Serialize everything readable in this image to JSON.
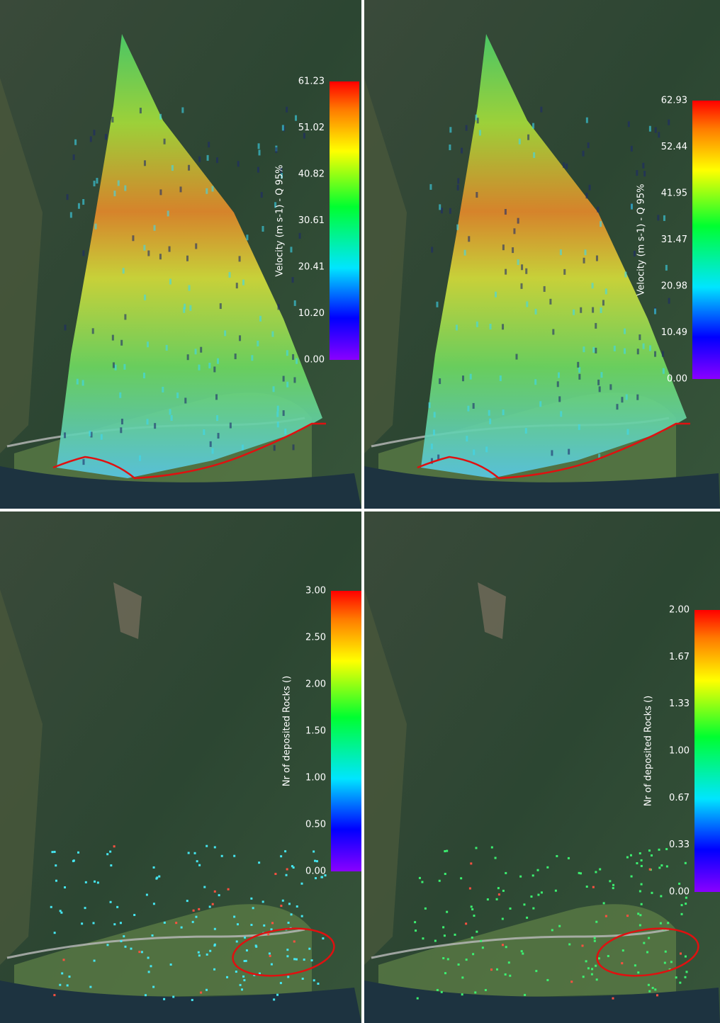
{
  "panels": [
    {
      "colorbar": {
        "title": "Velocity (m s-1) - Q 95%",
        "ticks": [
          "0.00",
          "10.20",
          "20.41",
          "30.61",
          "40.82",
          "51.02",
          "61.23"
        ]
      }
    },
    {
      "colorbar": {
        "title": "Velocity (m s-1) - Q 95%",
        "ticks": [
          "0.00",
          "10.49",
          "20.98",
          "31.47",
          "41.95",
          "52.44",
          "62.93"
        ]
      }
    },
    {
      "colorbar": {
        "title": "Nr of deposited Rocks ()",
        "ticks": [
          "0.00",
          "0.50",
          "1.00",
          "1.50",
          "2.00",
          "2.50",
          "3.00"
        ]
      }
    },
    {
      "colorbar": {
        "title": "Nr of deposited Rocks ()",
        "ticks": [
          "0.00",
          "0.33",
          "0.67",
          "1.00",
          "1.33",
          "1.67",
          "2.00"
        ]
      }
    }
  ]
}
